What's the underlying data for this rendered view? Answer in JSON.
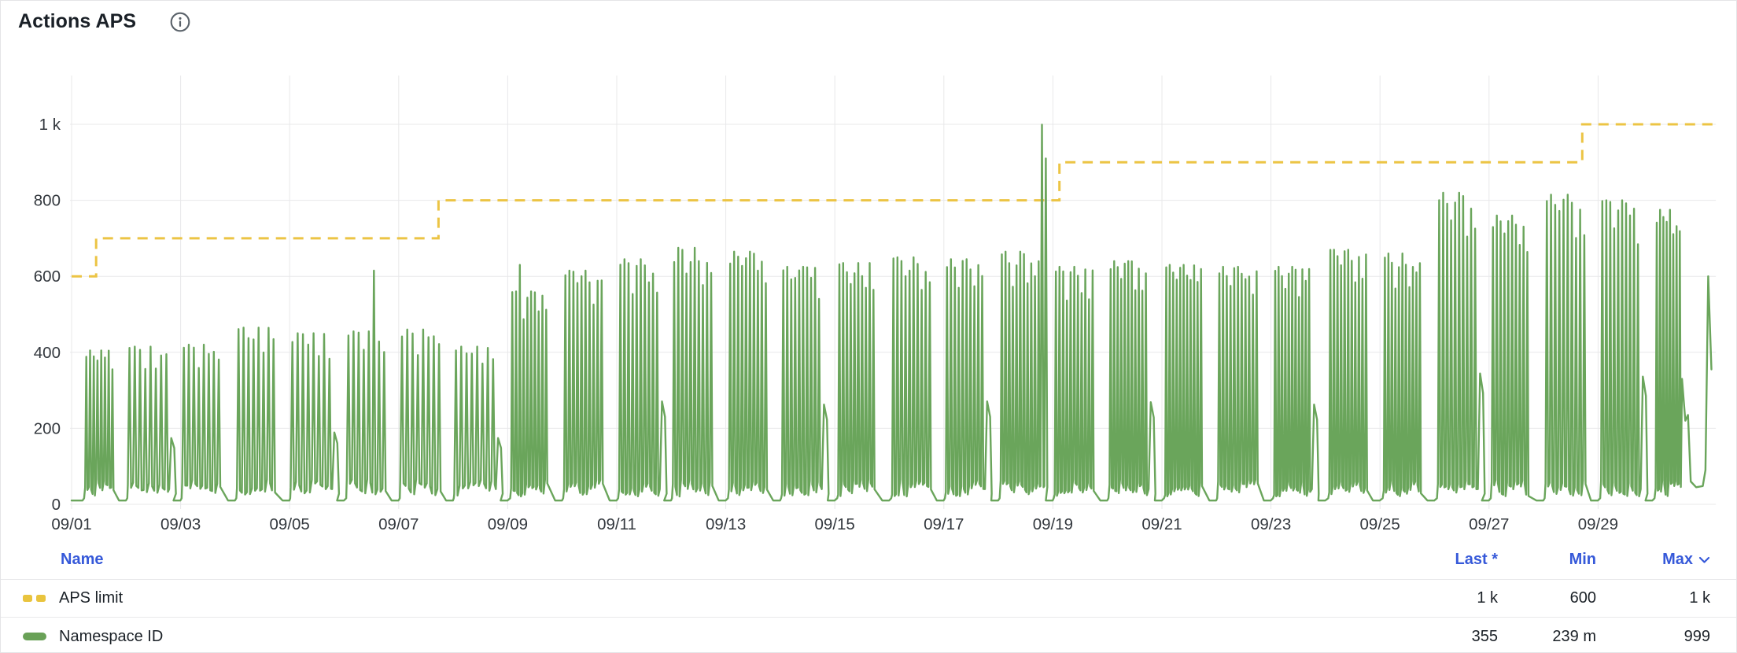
{
  "header": {
    "title": "Actions APS",
    "info_icon": "info-icon"
  },
  "colors": {
    "accent_blue": "#3659d9",
    "series_green": "#6aa55b",
    "series_yellow": "#ecc444",
    "grid": "#e8e8ea",
    "axis_text": "#33383e",
    "text_dark": "#1b2127",
    "card_border": "#e4e4e7"
  },
  "chart_data": {
    "type": "line",
    "title": "Actions APS",
    "grid": true,
    "x_axis": {
      "tick_labels": [
        "09/01",
        "09/03",
        "09/05",
        "09/07",
        "09/09",
        "09/11",
        "09/13",
        "09/15",
        "09/17",
        "09/19",
        "09/21",
        "09/23",
        "09/25",
        "09/27",
        "09/29"
      ],
      "tick_days": [
        0,
        2,
        4,
        6,
        8,
        10,
        12,
        14,
        16,
        18,
        20,
        22,
        24,
        26,
        28
      ],
      "range_days": [
        0,
        30.16
      ]
    },
    "y_axis": {
      "tick_labels": [
        "0",
        "200",
        "400",
        "600",
        "800",
        "1 k"
      ],
      "ticks": [
        0,
        200,
        400,
        600,
        800,
        1000
      ],
      "range": [
        0,
        1068
      ]
    },
    "series": [
      {
        "name": "APS limit",
        "color": "#ecc444",
        "line_style": "dashed",
        "shape": "step",
        "points": [
          [
            0,
            600
          ],
          [
            0.45,
            600
          ],
          [
            0.45,
            700
          ],
          [
            6.73,
            700
          ],
          [
            6.73,
            800
          ],
          [
            18.12,
            800
          ],
          [
            18.12,
            900
          ],
          [
            27.71,
            900
          ],
          [
            27.71,
            1000
          ],
          [
            30.16,
            1000
          ]
        ],
        "stats": {
          "last": "1 k",
          "min": "600",
          "max": "1 k"
        }
      },
      {
        "name": "Namespace ID",
        "color": "#6aa55b",
        "line_style": "solid",
        "shape": "daily-spike-clusters",
        "pattern": {
          "seed": 12345,
          "base_value": 10,
          "bump_ratio": 0.42,
          "daily_peaks": [
            405,
            415,
            420,
            465,
            450,
            455,
            460,
            415,
            560,
            615,
            645,
            675,
            665,
            625,
            635,
            650,
            645,
            665,
            625,
            640,
            630,
            625,
            625,
            670,
            660,
            820,
            760,
            815,
            800,
            775
          ],
          "spikes_per_day": [
            8,
            8,
            8,
            8,
            8,
            8,
            8,
            8,
            10,
            10,
            10,
            10,
            10,
            10,
            10,
            10,
            10,
            11,
            11,
            11,
            11,
            11,
            11,
            11,
            11,
            10,
            10,
            10,
            10,
            8
          ],
          "special_spikes": [
            [
              5.55,
              615
            ],
            [
              8.2,
              630
            ],
            [
              17.8,
              999
            ],
            [
              17.87,
              910
            ]
          ],
          "tail": [
            [
              29.54,
              330
            ],
            [
              29.6,
              220
            ],
            [
              29.65,
              235
            ],
            [
              29.7,
              60
            ],
            [
              29.8,
              45
            ],
            [
              29.92,
              48
            ],
            [
              29.97,
              90
            ],
            [
              30.02,
              600
            ],
            [
              30.08,
              355
            ]
          ]
        },
        "stats": {
          "last": "355",
          "min": "239 m",
          "max": "999"
        }
      }
    ]
  },
  "legend_table": {
    "columns": {
      "name": "Name",
      "last": "Last *",
      "min": "Min",
      "max": "Max"
    },
    "max_sort_indicator": "chevron-down",
    "rows": [
      {
        "name": "APS limit",
        "swatch": "dashed-yellow",
        "last": "1 k",
        "min": "600",
        "max": "1 k"
      },
      {
        "name": "Namespace ID",
        "swatch": "solid-green",
        "last": "355",
        "min": "239 m",
        "max": "999"
      }
    ]
  }
}
